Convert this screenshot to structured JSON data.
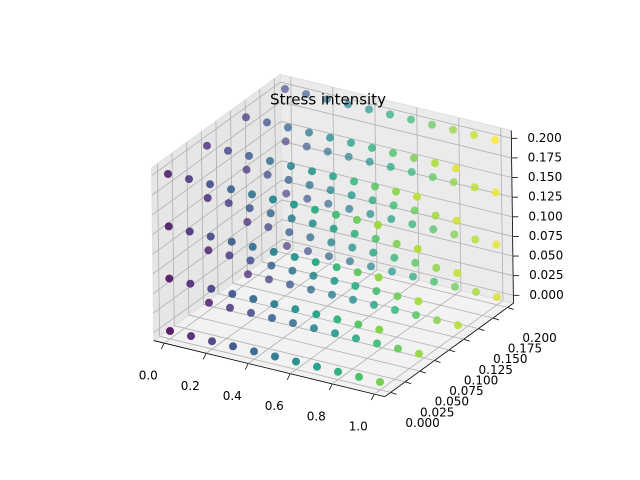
{
  "chart_data": {
    "type": "scatter3d",
    "title": "Stress intensity",
    "x": [
      0,
      0.1,
      0.2,
      0.3,
      0.4,
      0.5,
      0.6,
      0.7,
      0.8,
      0.9,
      1.0
    ],
    "series": [
      {
        "y": 0,
        "z": 0,
        "values": [
          0.1,
          0.18,
          0.26,
          0.34,
          0.42,
          0.5,
          0.58,
          0.66,
          0.74,
          0.82,
          0.9
        ]
      },
      {
        "y": 0,
        "z": 0.0667,
        "values": [
          0.12,
          0.2,
          0.28,
          0.36,
          0.44,
          0.52,
          0.6,
          0.68,
          0.76,
          0.84,
          0.92
        ]
      },
      {
        "y": 0,
        "z": 0.1333,
        "values": [
          0.14,
          0.22,
          0.3,
          0.38,
          0.46,
          0.54,
          0.62,
          0.7,
          0.78,
          0.86,
          0.94
        ]
      },
      {
        "y": 0,
        "z": 0.2,
        "values": [
          0.16,
          0.24,
          0.32,
          0.4,
          0.48,
          0.56,
          0.64,
          0.72,
          0.8,
          0.88,
          0.96
        ]
      },
      {
        "y": 0.0667,
        "z": 0,
        "values": [
          0.15,
          0.23,
          0.31,
          0.39,
          0.47,
          0.55,
          0.63,
          0.71,
          0.79,
          0.87,
          0.95
        ]
      },
      {
        "y": 0.0667,
        "z": 0.0667,
        "values": [
          0.17,
          0.25,
          0.33,
          0.41,
          0.49,
          0.57,
          0.65,
          0.73,
          0.81,
          0.89,
          0.97
        ]
      },
      {
        "y": 0.0667,
        "z": 0.1333,
        "values": [
          0.19,
          0.27,
          0.35,
          0.43,
          0.51,
          0.59,
          0.67,
          0.75,
          0.83,
          0.91,
          0.99
        ]
      },
      {
        "y": 0.0667,
        "z": 0.2,
        "values": [
          0.21,
          0.29,
          0.37,
          0.45,
          0.53,
          0.61,
          0.69,
          0.77,
          0.85,
          0.93,
          1.01
        ]
      },
      {
        "y": 0.1333,
        "z": 0,
        "values": [
          0.2,
          0.28,
          0.36,
          0.44,
          0.52,
          0.6,
          0.68,
          0.76,
          0.84,
          0.92,
          1.0
        ]
      },
      {
        "y": 0.1333,
        "z": 0.0667,
        "values": [
          0.22,
          0.3,
          0.38,
          0.46,
          0.54,
          0.62,
          0.7,
          0.78,
          0.86,
          0.94,
          1.02
        ]
      },
      {
        "y": 0.1333,
        "z": 0.1333,
        "values": [
          0.24,
          0.32,
          0.4,
          0.48,
          0.56,
          0.64,
          0.72,
          0.8,
          0.88,
          0.96,
          1.04
        ]
      },
      {
        "y": 0.1333,
        "z": 0.2,
        "values": [
          0.26,
          0.34,
          0.42,
          0.5,
          0.58,
          0.66,
          0.74,
          0.82,
          0.9,
          0.98,
          1.06
        ]
      },
      {
        "y": 0.2,
        "z": 0,
        "values": [
          0.25,
          0.33,
          0.41,
          0.49,
          0.57,
          0.65,
          0.73,
          0.81,
          0.89,
          0.97,
          1.05
        ]
      },
      {
        "y": 0.2,
        "z": 0.0667,
        "values": [
          0.27,
          0.35,
          0.43,
          0.51,
          0.59,
          0.67,
          0.75,
          0.83,
          0.91,
          0.99,
          1.07
        ]
      },
      {
        "y": 0.2,
        "z": 0.1333,
        "values": [
          0.29,
          0.37,
          0.45,
          0.53,
          0.61,
          0.69,
          0.77,
          0.85,
          0.93,
          1.01,
          1.09
        ]
      },
      {
        "y": 0.2,
        "z": 0.2,
        "values": [
          0.31,
          0.39,
          0.47,
          0.55,
          0.63,
          0.71,
          0.79,
          0.87,
          0.95,
          1.03,
          1.11
        ]
      }
    ],
    "colormap": "viridis",
    "xlim": [
      -0.05,
      1.05
    ],
    "ylim": [
      -0.01,
      0.21
    ],
    "zlim": [
      -0.01,
      0.21
    ],
    "xticks": [
      {
        "value": 0,
        "label": "0.0"
      },
      {
        "value": 0.2,
        "label": "0.2"
      },
      {
        "value": 0.4,
        "label": "0.4"
      },
      {
        "value": 0.6,
        "label": "0.6"
      },
      {
        "value": 0.8,
        "label": "0.8"
      },
      {
        "value": 1,
        "label": "1.0"
      }
    ],
    "yticks": [
      {
        "value": 0,
        "label": "0.000"
      },
      {
        "value": 0.025,
        "label": "0.025"
      },
      {
        "value": 0.05,
        "label": "0.050"
      },
      {
        "value": 0.075,
        "label": "0.075"
      },
      {
        "value": 0.1,
        "label": "0.100"
      },
      {
        "value": 0.125,
        "label": "0.125"
      },
      {
        "value": 0.15,
        "label": "0.150"
      },
      {
        "value": 0.175,
        "label": "0.175"
      },
      {
        "value": 0.2,
        "label": "0.200"
      }
    ],
    "zticks": [
      {
        "value": 0,
        "label": "0.000"
      },
      {
        "value": 0.025,
        "label": "0.025"
      },
      {
        "value": 0.05,
        "label": "0.050"
      },
      {
        "value": 0.075,
        "label": "0.075"
      },
      {
        "value": 0.1,
        "label": "0.100"
      },
      {
        "value": 0.125,
        "label": "0.125"
      },
      {
        "value": 0.15,
        "label": "0.150"
      },
      {
        "value": 0.175,
        "label": "0.175"
      },
      {
        "value": 0.2,
        "label": "0.200"
      }
    ],
    "grid": true
  }
}
